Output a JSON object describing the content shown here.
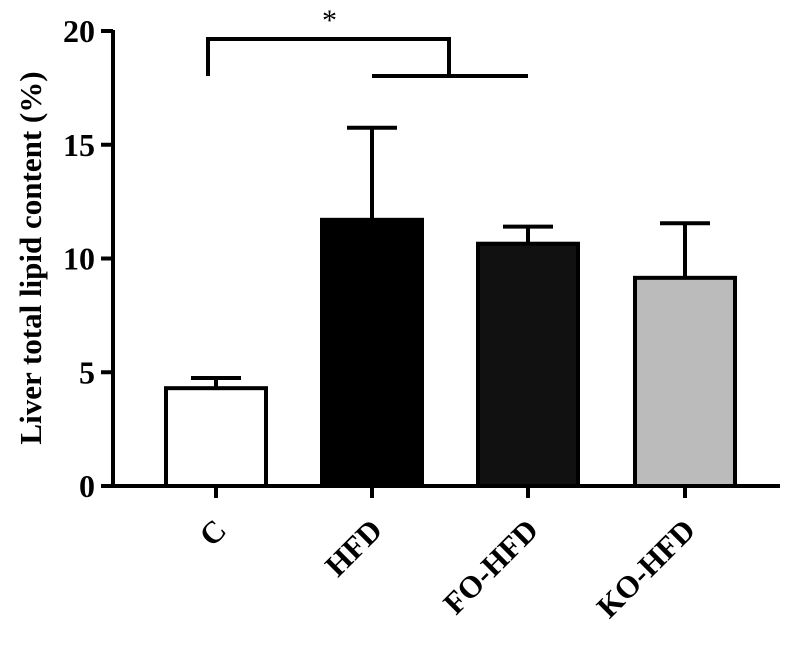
{
  "chart_data": {
    "type": "bar",
    "title": "",
    "xlabel": "",
    "ylabel": "Liver total lipid content (%)",
    "ylim": [
      0,
      20
    ],
    "yticks": [
      0,
      5,
      10,
      15,
      20
    ],
    "grid": false,
    "legend": "none",
    "categories": [
      "C",
      "HFD",
      "FO-HFD",
      "KO-HFD"
    ],
    "values": [
      4.3,
      11.7,
      10.65,
      9.15
    ],
    "errors": [
      0.45,
      4.05,
      0.75,
      2.4
    ],
    "fill_colors": [
      "#ffffff",
      "#000000",
      "#111111",
      "#bbbbbb"
    ],
    "significance": [
      {
        "label": "*",
        "from": "C",
        "to": [
          "HFD",
          "FO-HFD"
        ]
      }
    ]
  }
}
